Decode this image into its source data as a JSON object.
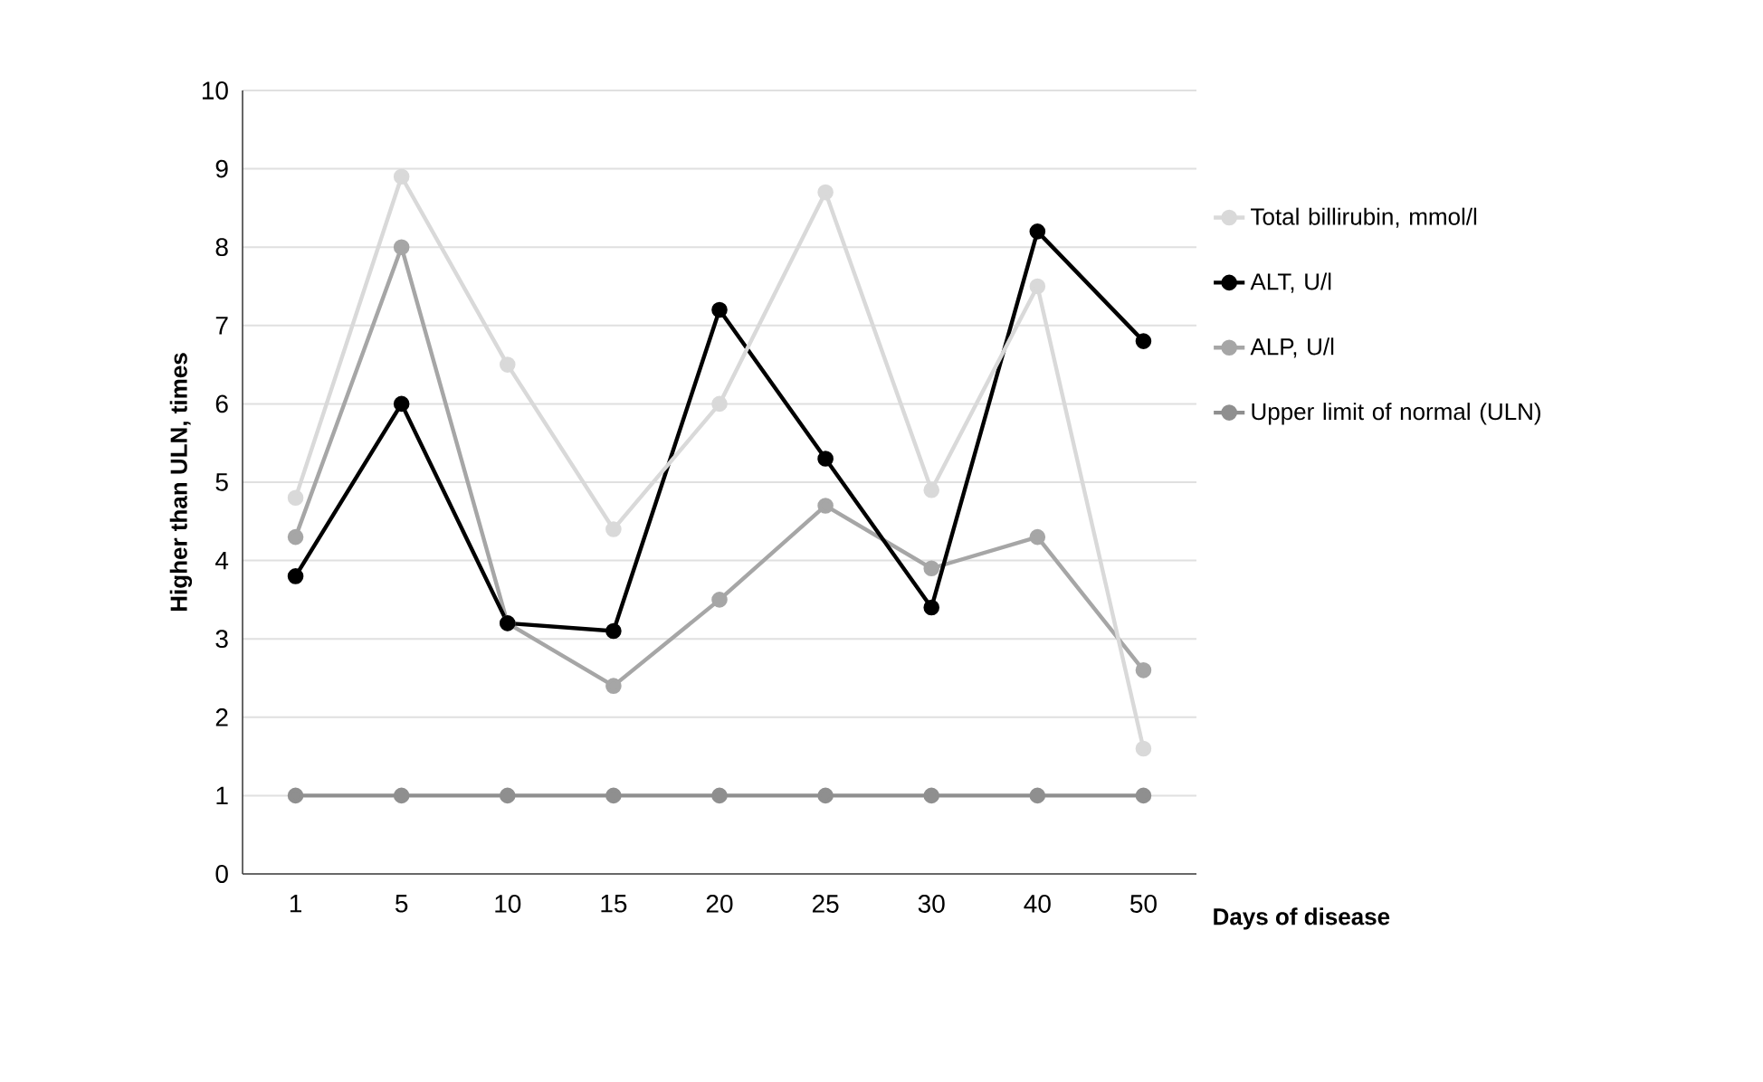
{
  "chart_data": {
    "type": "line",
    "xlabel": "Days of disease",
    "ylabel": "Higher than ULN, times",
    "categories": [
      "1",
      "5",
      "10",
      "15",
      "20",
      "25",
      "30",
      "40",
      "50"
    ],
    "series": [
      {
        "name": "Total billirubin, mmol/l",
        "color": "#d9d9d9",
        "values": [
          4.8,
          8.9,
          6.5,
          4.4,
          6.0,
          8.7,
          4.9,
          7.5,
          1.6
        ]
      },
      {
        "name": "ALT, U/l",
        "color": "#000000",
        "values": [
          3.8,
          6.0,
          3.2,
          3.1,
          7.2,
          5.3,
          3.4,
          8.2,
          6.8
        ]
      },
      {
        "name": "ALP, U/l",
        "color": "#a6a6a6",
        "values": [
          4.3,
          8.0,
          3.2,
          2.4,
          3.5,
          4.7,
          3.9,
          4.3,
          2.6
        ]
      },
      {
        "name": "Upper limit of normal (ULN)",
        "color": "#8f8f8f",
        "values": [
          1,
          1,
          1,
          1,
          1,
          1,
          1,
          1,
          1
        ]
      }
    ],
    "ylim": [
      0,
      10
    ],
    "yticks": [
      0,
      1,
      2,
      3,
      4,
      5,
      6,
      7,
      8,
      9,
      10
    ],
    "grid": "y",
    "legend": "right",
    "marker": "circle",
    "line_style": "solid"
  }
}
